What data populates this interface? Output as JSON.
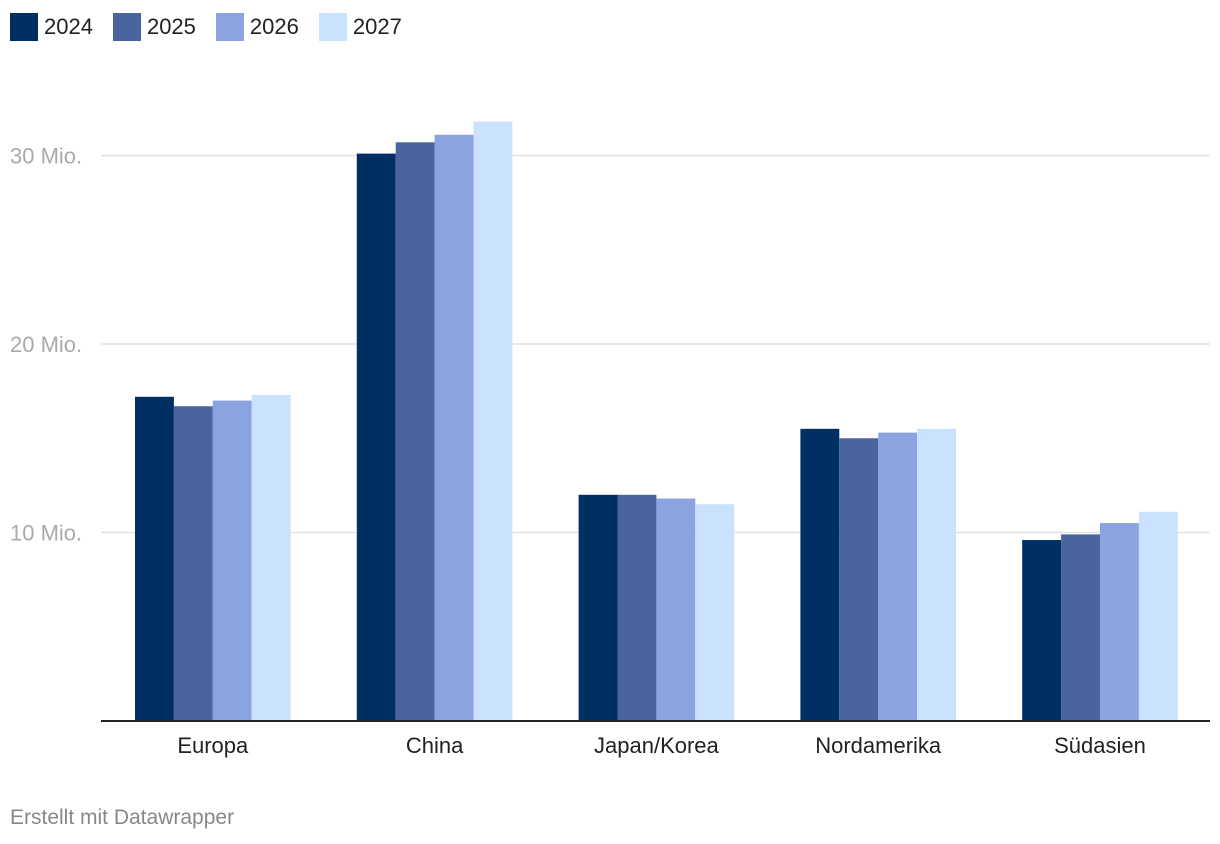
{
  "chart_data": {
    "type": "bar",
    "categories": [
      "Europa",
      "China",
      "Japan/Korea",
      "Nordamerika",
      "Südasien"
    ],
    "series": [
      {
        "name": "2024",
        "color": "#003063",
        "values": [
          17.2,
          30.1,
          12.0,
          15.5,
          9.6
        ]
      },
      {
        "name": "2025",
        "color": "#4a64a0",
        "values": [
          16.7,
          30.7,
          12.0,
          15.0,
          9.9
        ]
      },
      {
        "name": "2026",
        "color": "#8ba3e0",
        "values": [
          17.0,
          31.1,
          11.8,
          15.3,
          10.5
        ]
      },
      {
        "name": "2027",
        "color": "#cbe2fe",
        "values": [
          17.3,
          31.8,
          11.5,
          15.5,
          11.1
        ]
      }
    ],
    "yticks": [
      {
        "value": 10,
        "label": "10 Mio."
      },
      {
        "value": 20,
        "label": "20 Mio."
      },
      {
        "value": 30,
        "label": "30 Mio."
      }
    ],
    "ylim": [
      0,
      32.5
    ],
    "grid": true,
    "legend_position": "top-left"
  },
  "credit": "Erstellt mit Datawrapper"
}
